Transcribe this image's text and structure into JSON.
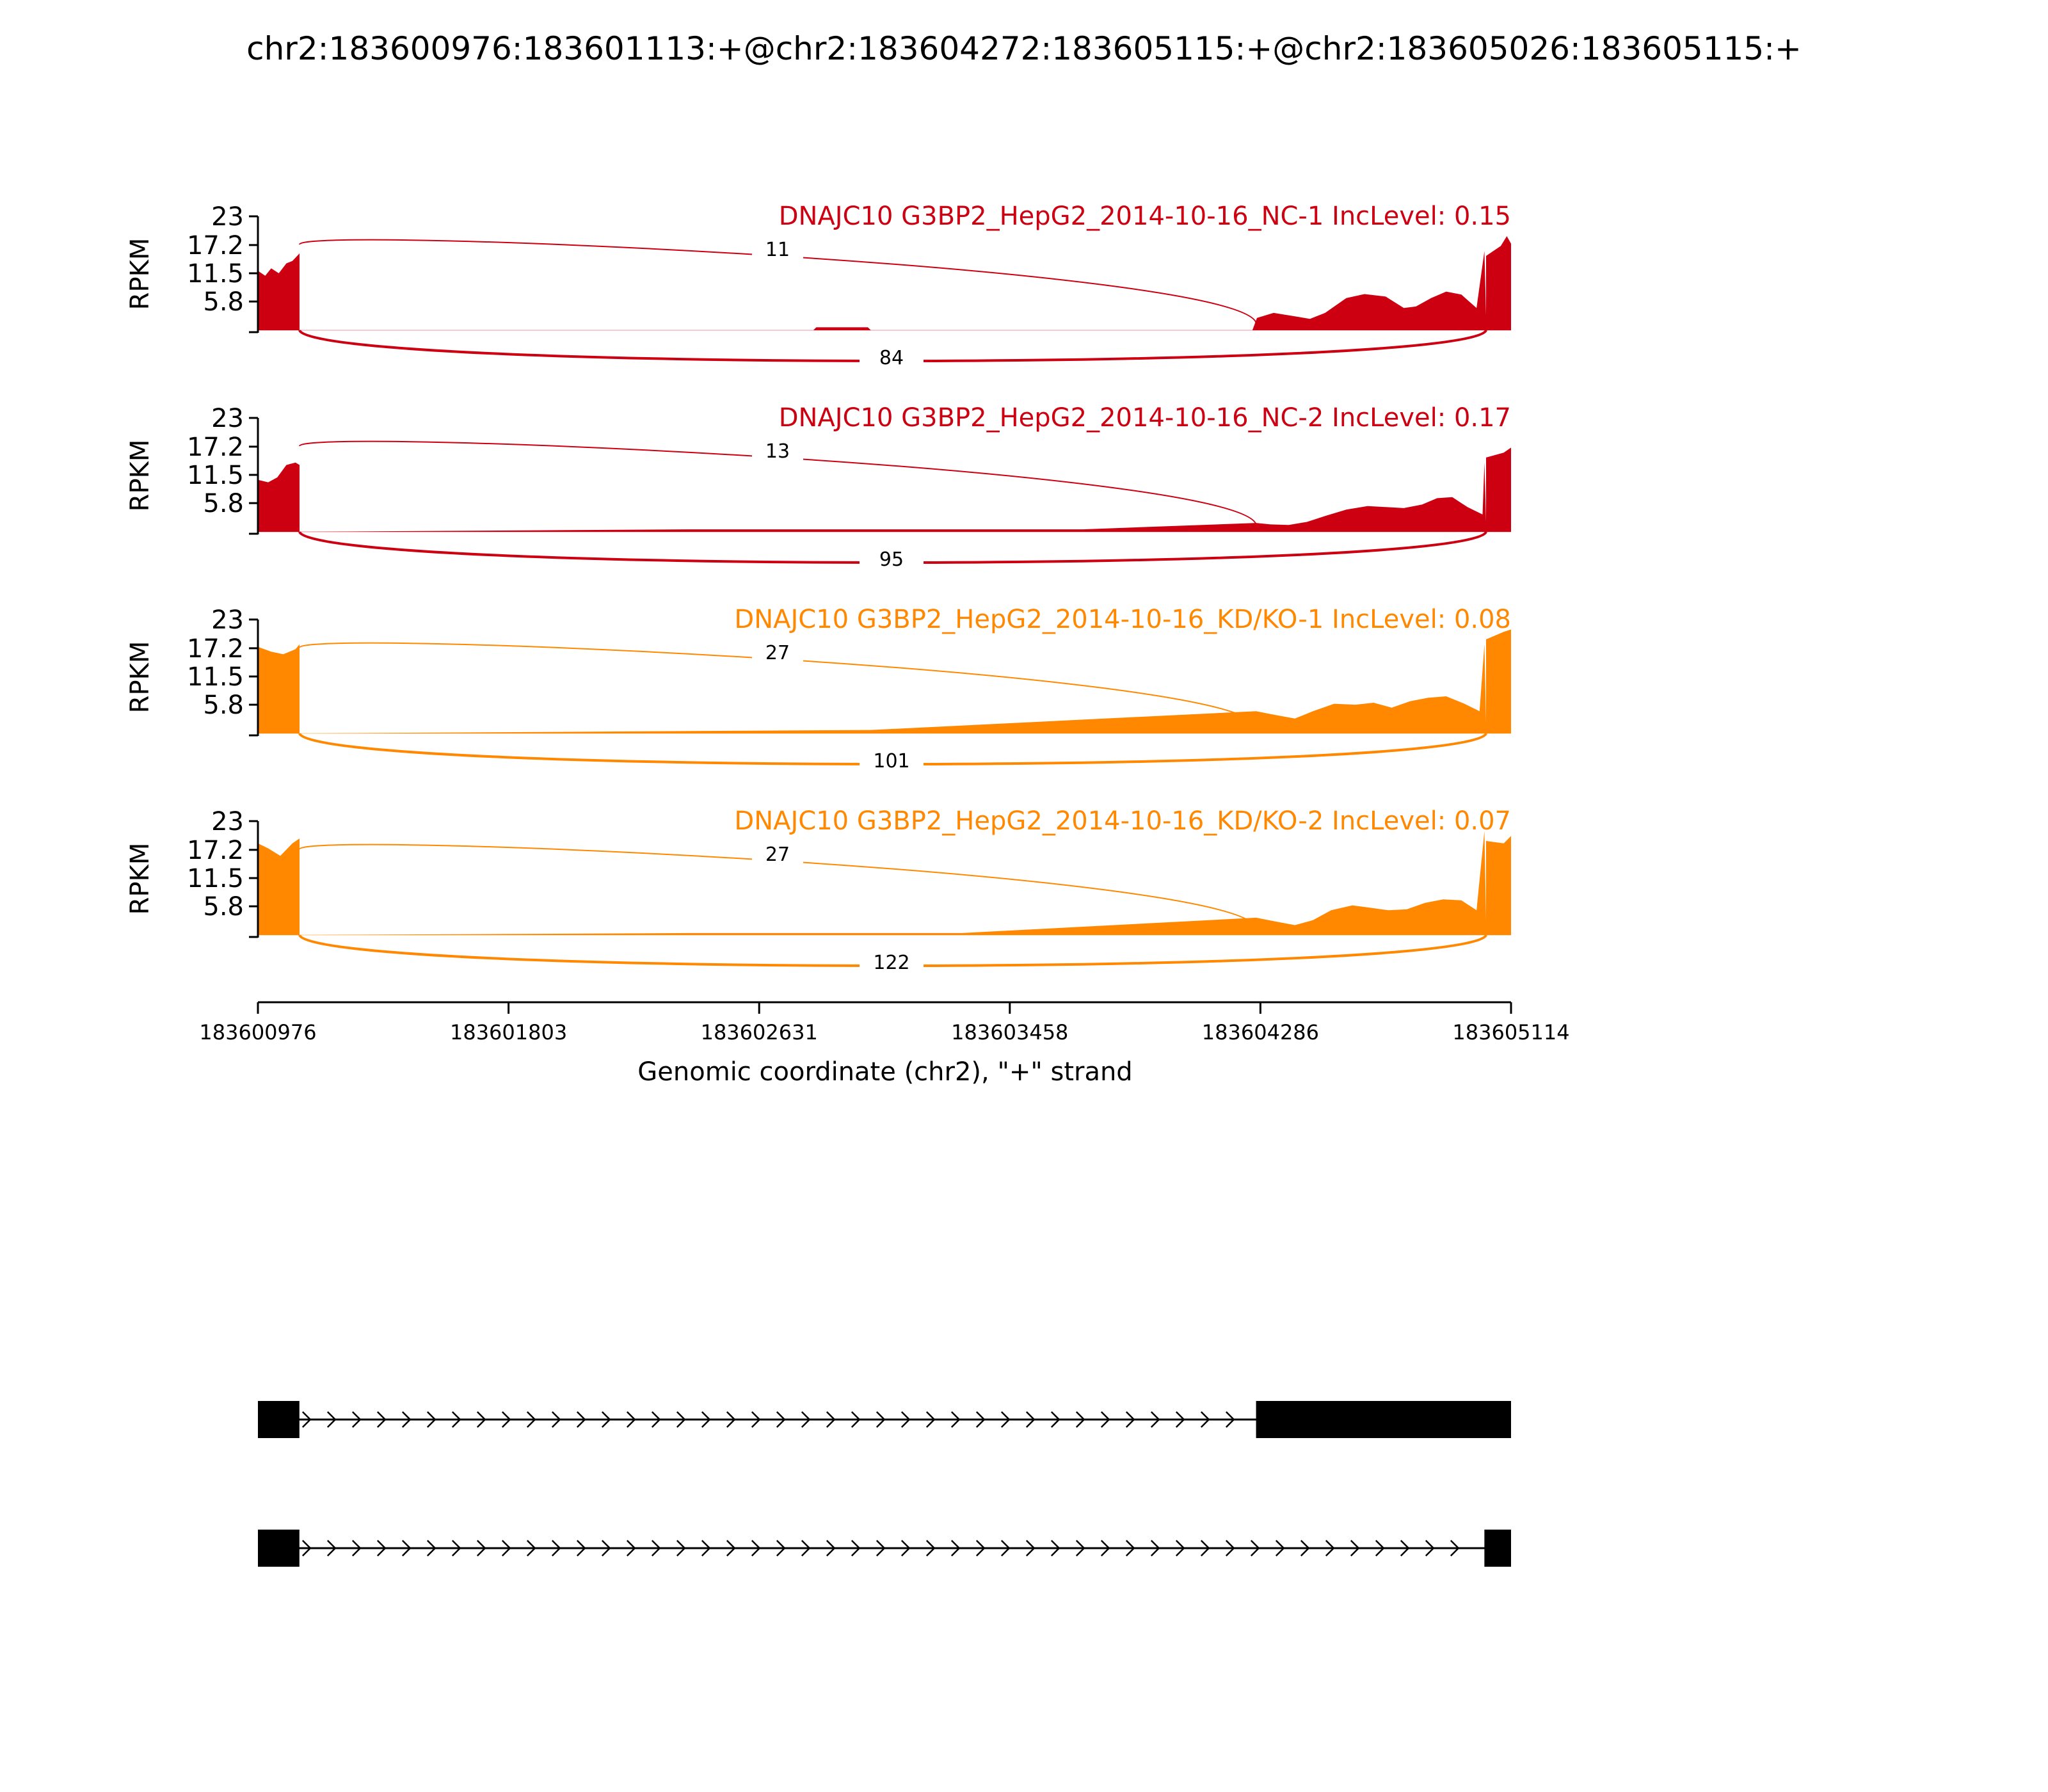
{
  "title": "chr2:183600976:183601113:+@chr2:183604272:183605115:+@chr2:183605026:183605115:+",
  "colors": {
    "nc": "#cc0011",
    "kd": "#ff8800",
    "axis": "#000000",
    "gene": "#000000"
  },
  "chart_data": {
    "type": "area",
    "title": "chr2:183600976:183601113:+@chr2:183604272:183605115:+@chr2:183605026:183605115:+",
    "ylabel": "RPKM",
    "xlabel": "Genomic coordinate (chr2), \"+\" strand",
    "x_range": [
      183600976,
      183605114
    ],
    "y_range": [
      0,
      23
    ],
    "y_ticks": [
      "23",
      "17.2",
      "11.5",
      "5.8"
    ],
    "x_ticks": [
      "183600976",
      "183601803",
      "183602631",
      "183603458",
      "183604286",
      "183605114"
    ],
    "exons": [
      {
        "start": 183600976,
        "end": 183601113
      },
      {
        "start": 183604272,
        "end": 183605115
      },
      {
        "start": 183605026,
        "end": 183605115
      }
    ],
    "junctions": {
      "upper": {
        "from": 183601113,
        "to": 183604272
      },
      "lower": {
        "from": 183601113,
        "to": 183605026
      }
    },
    "tracks": [
      {
        "label": "DNAJC10 G3BP2_HepG2_2014-10-16_NC-1 IncLevel: 0.15",
        "group": "nc",
        "upper_junction_reads": "11",
        "lower_junction_reads": "84",
        "coverage": [
          [
            183600976,
            12
          ],
          [
            183601000,
            11
          ],
          [
            183601020,
            12.5
          ],
          [
            183601045,
            11.5
          ],
          [
            183601070,
            13.5
          ],
          [
            183601090,
            14
          ],
          [
            183601113,
            15.5
          ],
          [
            183602810,
            0
          ],
          [
            183602820,
            0.6
          ],
          [
            183602990,
            0.6
          ],
          [
            183603000,
            0
          ],
          [
            183604260,
            0
          ],
          [
            183604275,
            2.5
          ],
          [
            183604330,
            3.5
          ],
          [
            183604400,
            2.8
          ],
          [
            183604450,
            2.3
          ],
          [
            183604500,
            3.5
          ],
          [
            183604570,
            6.5
          ],
          [
            183604630,
            7.3
          ],
          [
            183604700,
            6.8
          ],
          [
            183604760,
            4.5
          ],
          [
            183604800,
            4.8
          ],
          [
            183604850,
            6.5
          ],
          [
            183604900,
            7.8
          ],
          [
            183604950,
            7.2
          ],
          [
            183605000,
            4.5
          ],
          [
            183605060,
            3
          ],
          [
            183605120,
            2
          ],
          [
            183605200,
            1.2
          ],
          [
            183605250,
            0.8
          ],
          [
            183605290,
            0.6
          ],
          [
            183605026,
            16
          ],
          [
            183605050,
            15
          ],
          [
            183605080,
            17
          ],
          [
            183605100,
            19
          ],
          [
            183605115,
            17.5
          ]
        ]
      },
      {
        "label": "DNAJC10 G3BP2_HepG2_2014-10-16_NC-2 IncLevel: 0.17",
        "group": "nc",
        "upper_junction_reads": "13",
        "lower_junction_reads": "95",
        "coverage": [
          [
            183600976,
            10.5
          ],
          [
            183601010,
            10
          ],
          [
            183601040,
            11
          ],
          [
            183601070,
            13.5
          ],
          [
            183601100,
            14
          ],
          [
            183601113,
            13.5
          ],
          [
            183602400,
            0.5
          ],
          [
            183603700,
            0.5
          ],
          [
            183604272,
            1.8
          ],
          [
            183604320,
            1.5
          ],
          [
            183604380,
            1.4
          ],
          [
            183604440,
            2
          ],
          [
            183604500,
            3.2
          ],
          [
            183604570,
            4.5
          ],
          [
            183604640,
            5.2
          ],
          [
            183604700,
            5
          ],
          [
            183604760,
            4.8
          ],
          [
            183604820,
            5.5
          ],
          [
            183604870,
            6.8
          ],
          [
            183604920,
            7
          ],
          [
            183604970,
            5
          ],
          [
            183605020,
            3.5
          ],
          [
            183605070,
            2
          ],
          [
            183605120,
            1
          ],
          [
            183605200,
            0.5
          ],
          [
            183605026,
            14
          ],
          [
            183605060,
            15
          ],
          [
            183605090,
            16
          ],
          [
            183605115,
            17
          ]
        ]
      },
      {
        "label": "DNAJC10 G3BP2_HepG2_2014-10-16_KD/KO-1 IncLevel: 0.08",
        "group": "kd",
        "upper_junction_reads": "27",
        "lower_junction_reads": "101",
        "coverage": [
          [
            183600976,
            17.5
          ],
          [
            183601020,
            16.5
          ],
          [
            183601060,
            16
          ],
          [
            183601100,
            17
          ],
          [
            183601113,
            18
          ],
          [
            183603000,
            0.7
          ],
          [
            183604272,
            4.5
          ],
          [
            183604330,
            3.8
          ],
          [
            183604400,
            3
          ],
          [
            183604460,
            4.5
          ],
          [
            183604530,
            6
          ],
          [
            183604600,
            5.8
          ],
          [
            183604660,
            6.2
          ],
          [
            183604720,
            5.2
          ],
          [
            183604780,
            6.5
          ],
          [
            183604840,
            7.2
          ],
          [
            183604900,
            7.5
          ],
          [
            183604960,
            6
          ],
          [
            183605010,
            4.5
          ],
          [
            183605060,
            2.2
          ],
          [
            183605150,
            1
          ],
          [
            183605250,
            1
          ],
          [
            183605026,
            18
          ],
          [
            183605060,
            19
          ],
          [
            183605090,
            20.5
          ],
          [
            183605115,
            21
          ]
        ]
      },
      {
        "label": "DNAJC10 G3BP2_HepG2_2014-10-16_KD/KO-2 IncLevel: 0.07",
        "group": "kd",
        "upper_junction_reads": "27",
        "lower_junction_reads": "122",
        "coverage": [
          [
            183600976,
            18.5
          ],
          [
            183601010,
            17.5
          ],
          [
            183601050,
            16
          ],
          [
            183601090,
            18.5
          ],
          [
            183601113,
            19.5
          ],
          [
            183602400,
            0.4
          ],
          [
            183603300,
            0.4
          ],
          [
            183604272,
            3.5
          ],
          [
            183604330,
            2.8
          ],
          [
            183604400,
            2
          ],
          [
            183604460,
            3
          ],
          [
            183604520,
            5
          ],
          [
            183604590,
            6
          ],
          [
            183604650,
            5.5
          ],
          [
            183604710,
            5
          ],
          [
            183604770,
            5.2
          ],
          [
            183604830,
            6.5
          ],
          [
            183604890,
            7.2
          ],
          [
            183604950,
            7
          ],
          [
            183605000,
            5
          ],
          [
            183605050,
            3
          ],
          [
            183605100,
            1.2
          ],
          [
            183605200,
            0.8
          ],
          [
            183605026,
            21
          ],
          [
            183605060,
            19
          ],
          [
            183605090,
            18.5
          ],
          [
            183605115,
            20
          ]
        ]
      }
    ],
    "transcripts": [
      {
        "exons": [
          [
            183600976,
            183601113
          ],
          [
            183604272,
            183605115
          ]
        ]
      },
      {
        "exons": [
          [
            183600976,
            183601113
          ],
          [
            183605026,
            183605115
          ]
        ]
      }
    ]
  }
}
